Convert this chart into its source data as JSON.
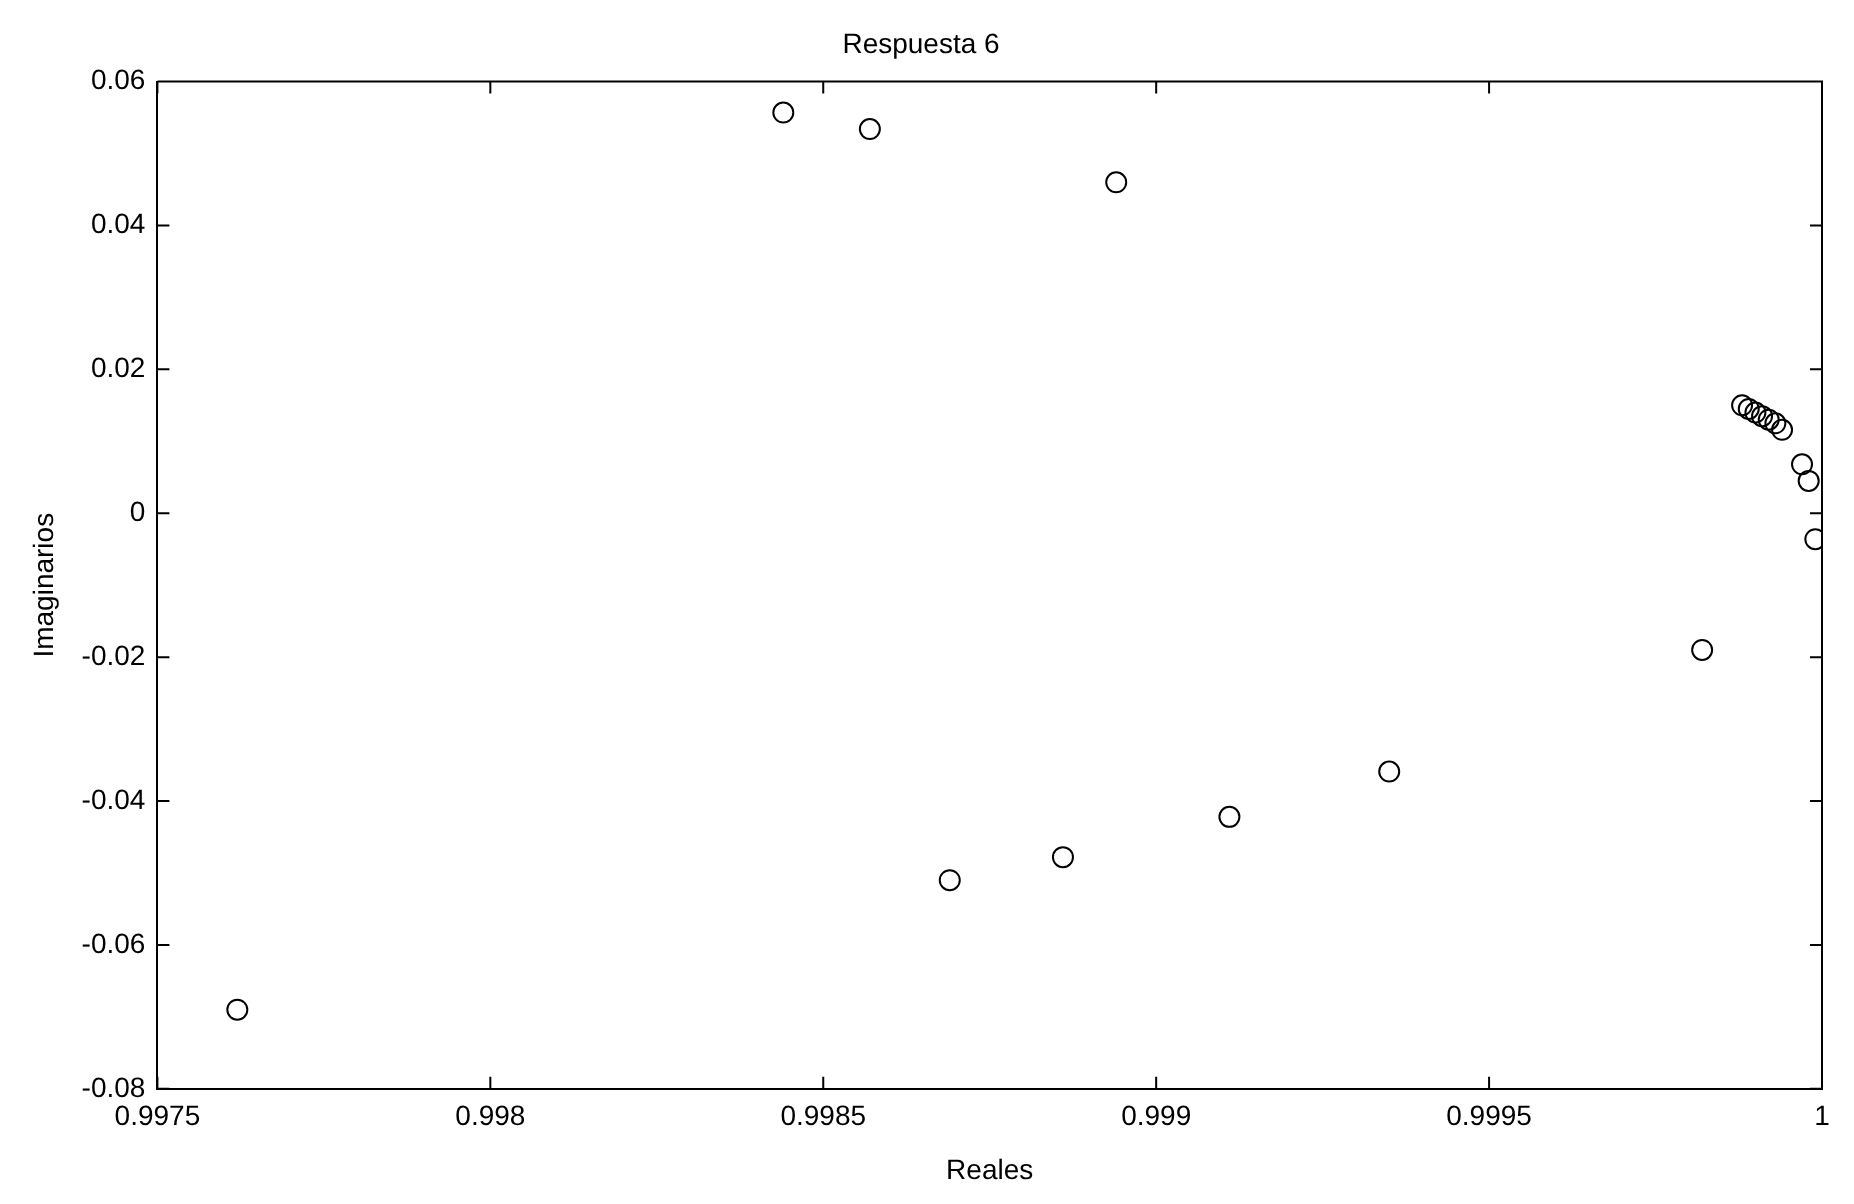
{
  "chart_data": {
    "type": "scatter",
    "title": "Respuesta 6",
    "xlabel": "Reales",
    "ylabel": "Imaginarios",
    "x": [
      0.99762,
      0.99844,
      0.99857,
      0.99894,
      0.99869,
      0.99886,
      0.99911,
      0.99935,
      0.99982,
      0.99988,
      0.99989,
      0.9999,
      0.99991,
      0.99992,
      0.99993,
      0.99994,
      0.99997,
      0.99998,
      0.99999
    ],
    "series": [
      {
        "color": "#000000",
        "values": [
          -0.069,
          0.0557,
          0.0534,
          0.046,
          -0.051,
          -0.0478,
          -0.0422,
          -0.0359,
          -0.019,
          0.015,
          0.0145,
          0.014,
          0.0135,
          0.013,
          0.0125,
          0.0116,
          0.0068,
          0.0045,
          -0.0036
        ]
      }
    ],
    "xlim": [
      0.9975,
      1
    ],
    "xticks": [
      0.9975,
      0.998,
      0.9985,
      0.999,
      0.9995,
      1
    ],
    "ylim": [
      -0.08,
      0.06
    ],
    "yticks": [
      -0.08,
      -0.06,
      -0.04,
      -0.02,
      0,
      0.02,
      0.04,
      0.06
    ],
    "marker": "circle",
    "grid": false,
    "legend": false
  }
}
